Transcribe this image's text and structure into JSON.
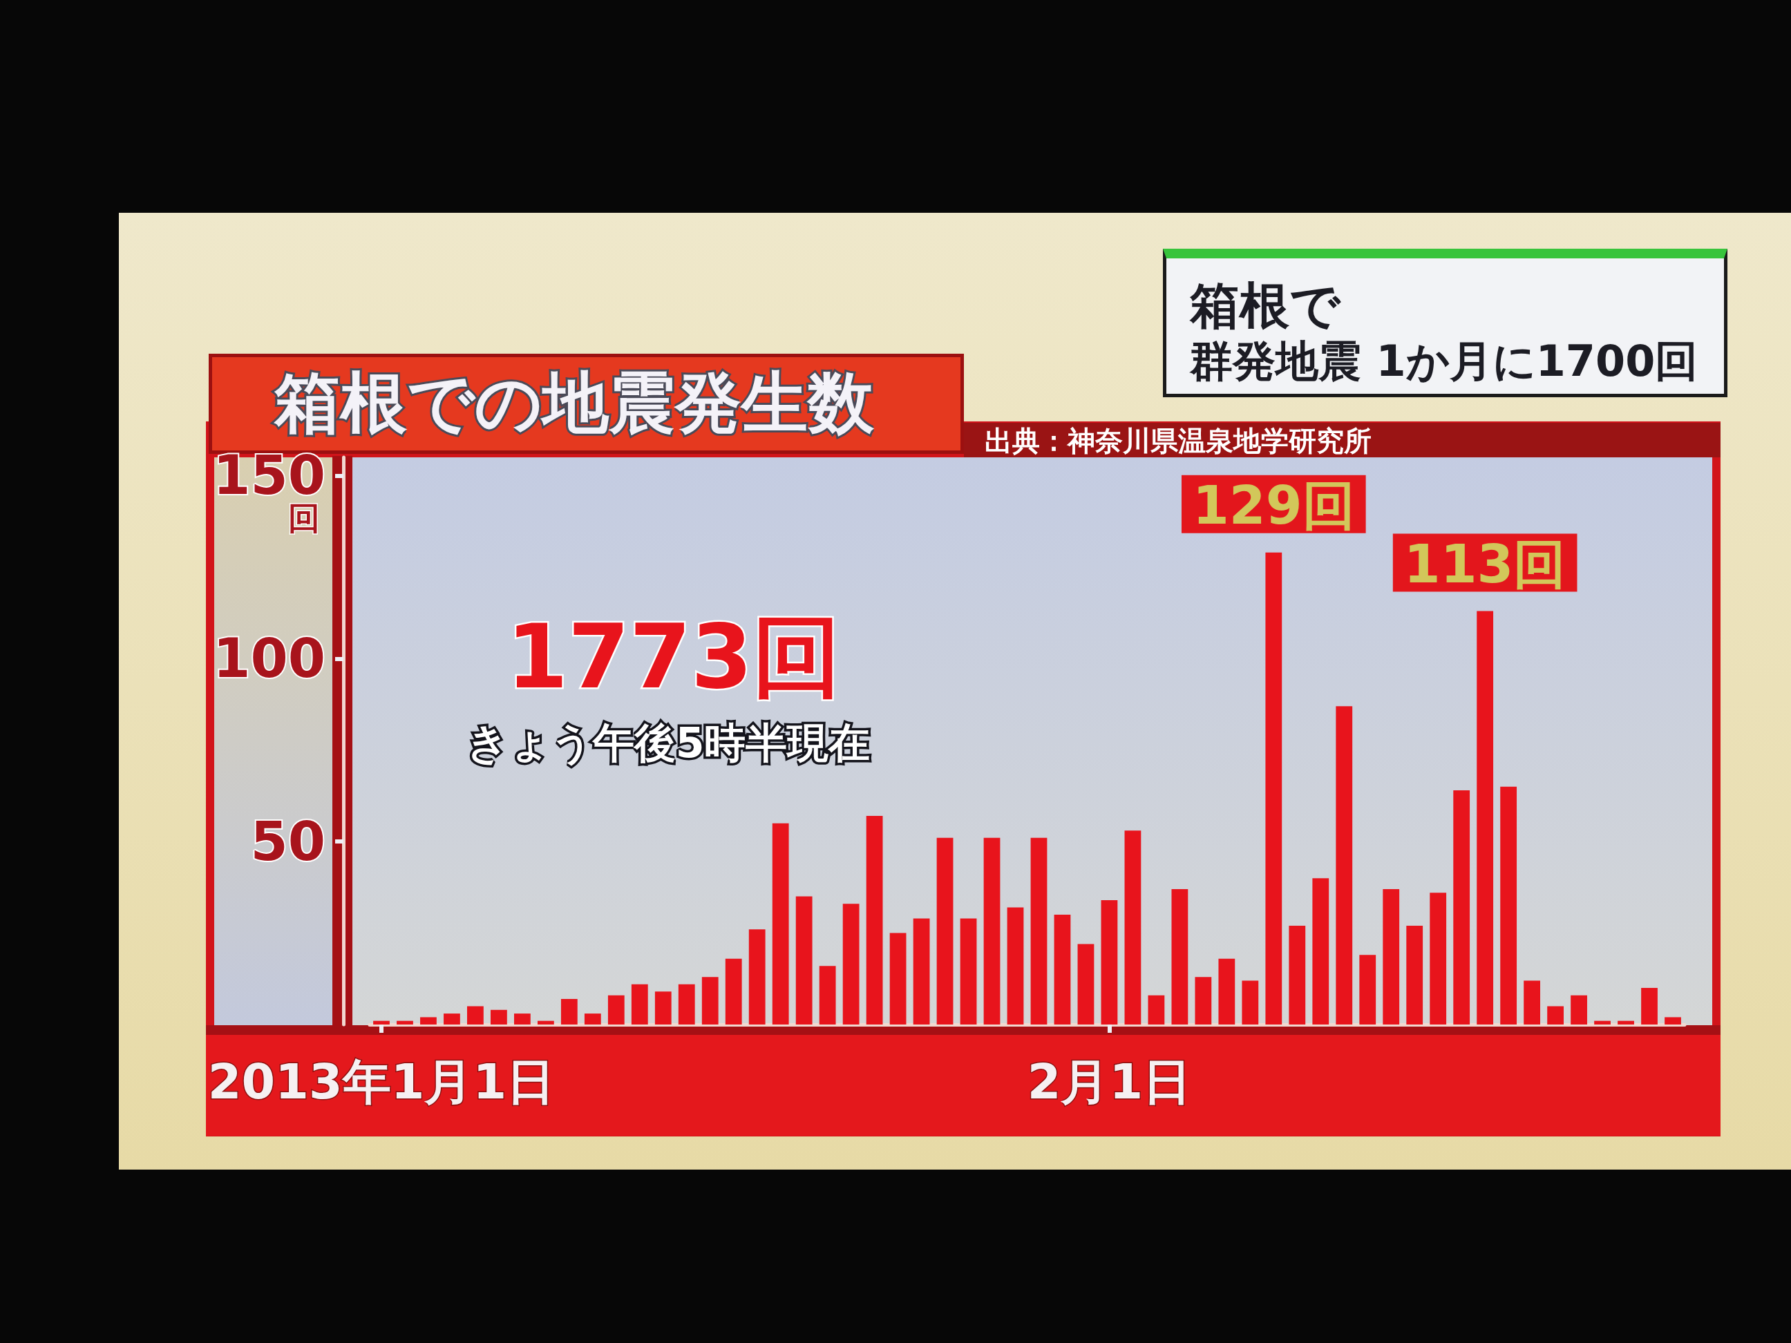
{
  "chart_data": {
    "type": "bar",
    "title": "箱根での地震発生数",
    "ylabel": "回",
    "categories": [
      "2013年1月1日",
      null,
      null,
      null,
      null,
      null,
      null,
      null,
      null,
      null,
      null,
      null,
      null,
      null,
      null,
      null,
      null,
      null,
      null,
      null,
      null,
      null,
      null,
      null,
      null,
      null,
      null,
      null,
      null,
      null,
      null,
      "2月1日",
      null,
      null,
      null,
      null,
      null,
      null,
      null,
      null,
      null,
      null,
      null,
      null,
      null,
      null,
      null,
      null,
      null,
      null,
      null,
      null,
      null,
      null,
      null,
      null
    ],
    "values": [
      1,
      1,
      2,
      3,
      5,
      4,
      3,
      1,
      7,
      3,
      8,
      11,
      9,
      11,
      13,
      18,
      26,
      55,
      35,
      16,
      33,
      57,
      25,
      29,
      51,
      29,
      51,
      32,
      51,
      30,
      22,
      34,
      53,
      8,
      37,
      13,
      18,
      12,
      129,
      27,
      40,
      87,
      19,
      37,
      27,
      36,
      64,
      113,
      65,
      12,
      5,
      8,
      1,
      1,
      10,
      2
    ],
    "value_labels": [
      null,
      null,
      null,
      null,
      null,
      null,
      null,
      null,
      null,
      null,
      null,
      null,
      null,
      null,
      null,
      null,
      null,
      null,
      null,
      null,
      null,
      null,
      null,
      null,
      null,
      null,
      null,
      null,
      null,
      null,
      null,
      null,
      null,
      null,
      null,
      null,
      null,
      null,
      "129回",
      null,
      null,
      null,
      null,
      null,
      null,
      null,
      null,
      "113回",
      null,
      null,
      null,
      null,
      null,
      null,
      null,
      null
    ],
    "color": "#e8141c",
    "ylim": [
      0,
      155
    ],
    "yticks": [
      50,
      100,
      150
    ],
    "annotations": [
      "1773回",
      "きょう午後5時半現在",
      "出典：神奈川県温泉地学研究所",
      "箱根で",
      "群発地震 1か月に1700回"
    ]
  }
}
